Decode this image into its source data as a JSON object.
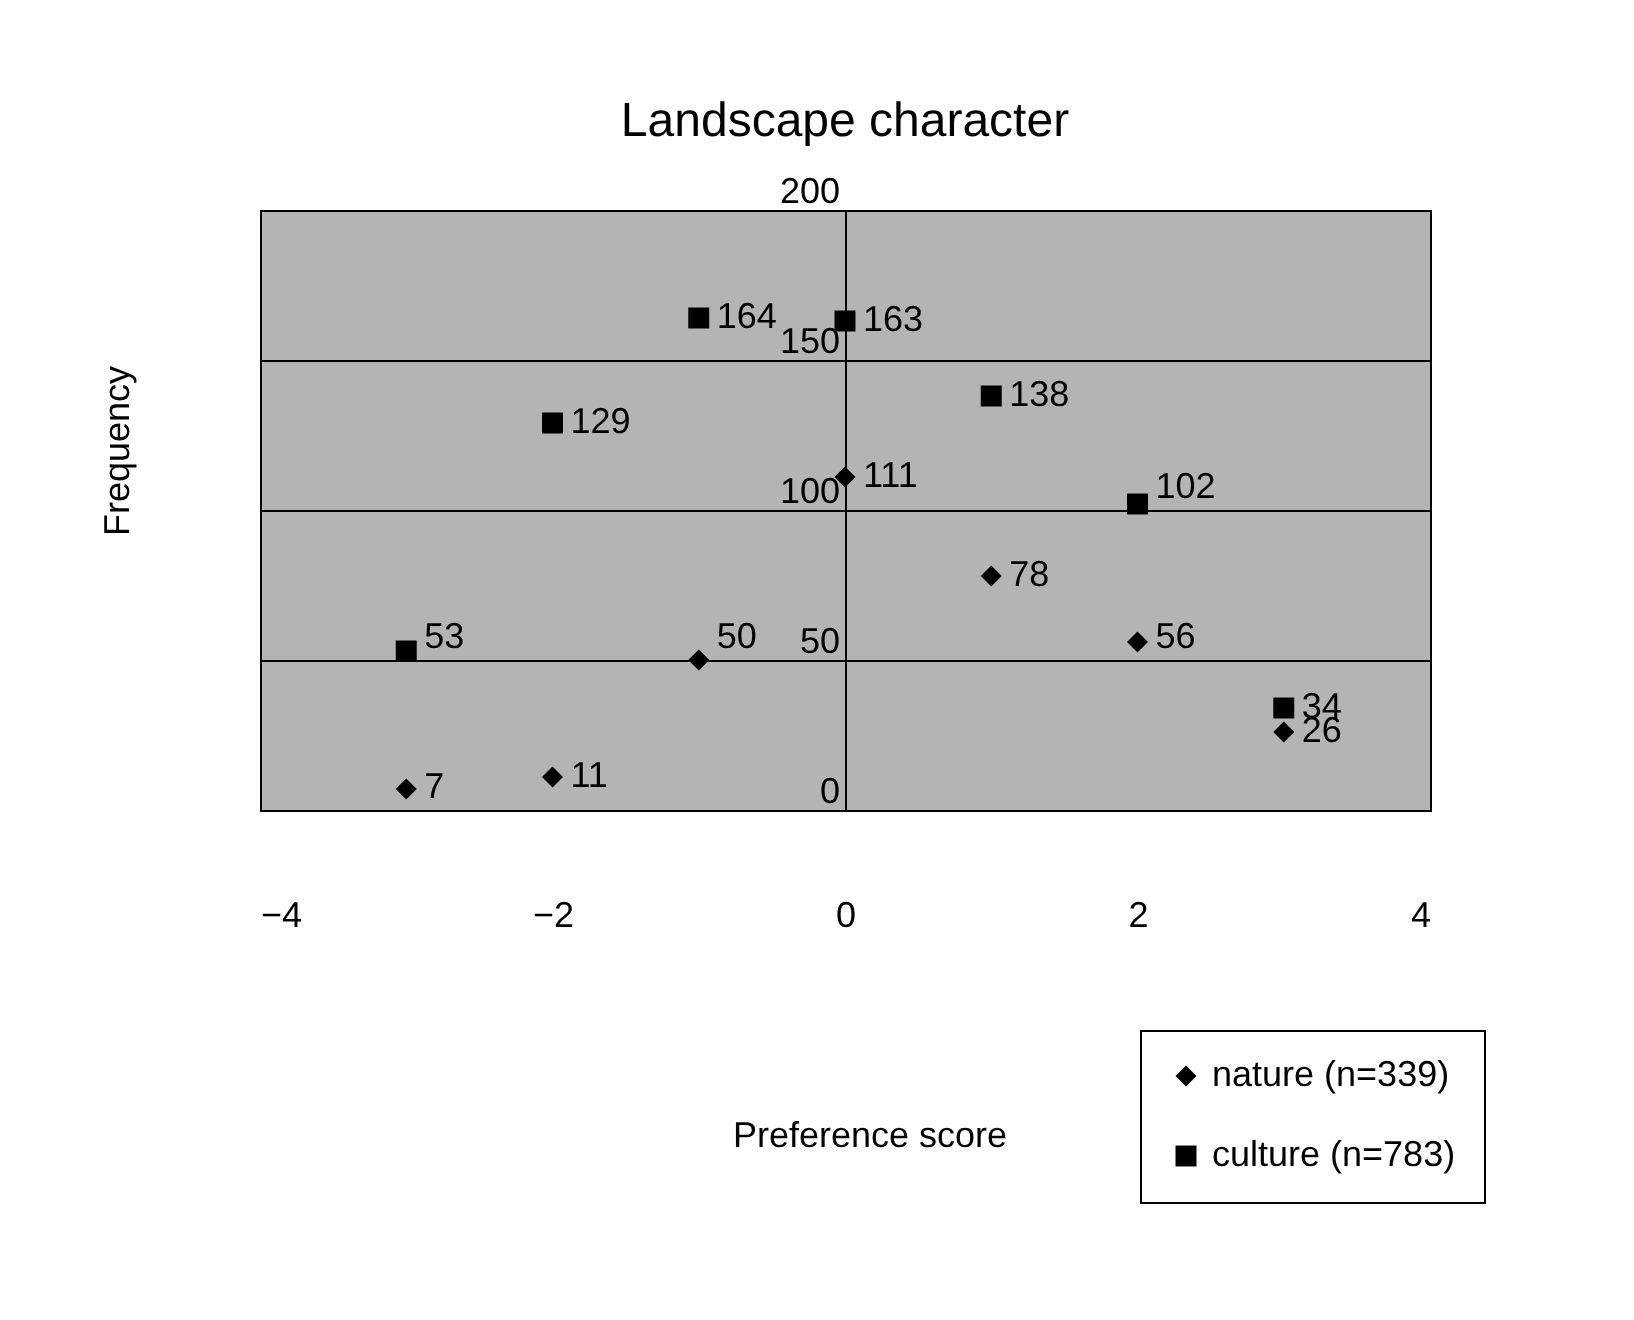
{
  "chart_data": {
    "type": "scatter",
    "title": "Landscape character",
    "xlabel": "Preference score",
    "ylabel": "Frequency",
    "x": [
      -3,
      -2,
      -1,
      0,
      1,
      2,
      3
    ],
    "series": [
      {
        "name": "nature (n=339)",
        "color": "#000000",
        "marker": "diamond",
        "values": [
          7,
          11,
          50,
          111,
          78,
          56,
          26
        ]
      },
      {
        "name": "culture (n=783)",
        "color": "#000000",
        "marker": "square",
        "values": [
          53,
          129,
          164,
          163,
          138,
          102,
          34
        ]
      }
    ],
    "xlim": [
      -4,
      4
    ],
    "xticks": [
      -4,
      -2,
      0,
      2,
      4
    ],
    "ylim": [
      0,
      200
    ],
    "yticks": [
      0,
      50,
      100,
      150,
      200
    ],
    "grid": "y",
    "legend": "bottom right",
    "data_labels": true
  }
}
